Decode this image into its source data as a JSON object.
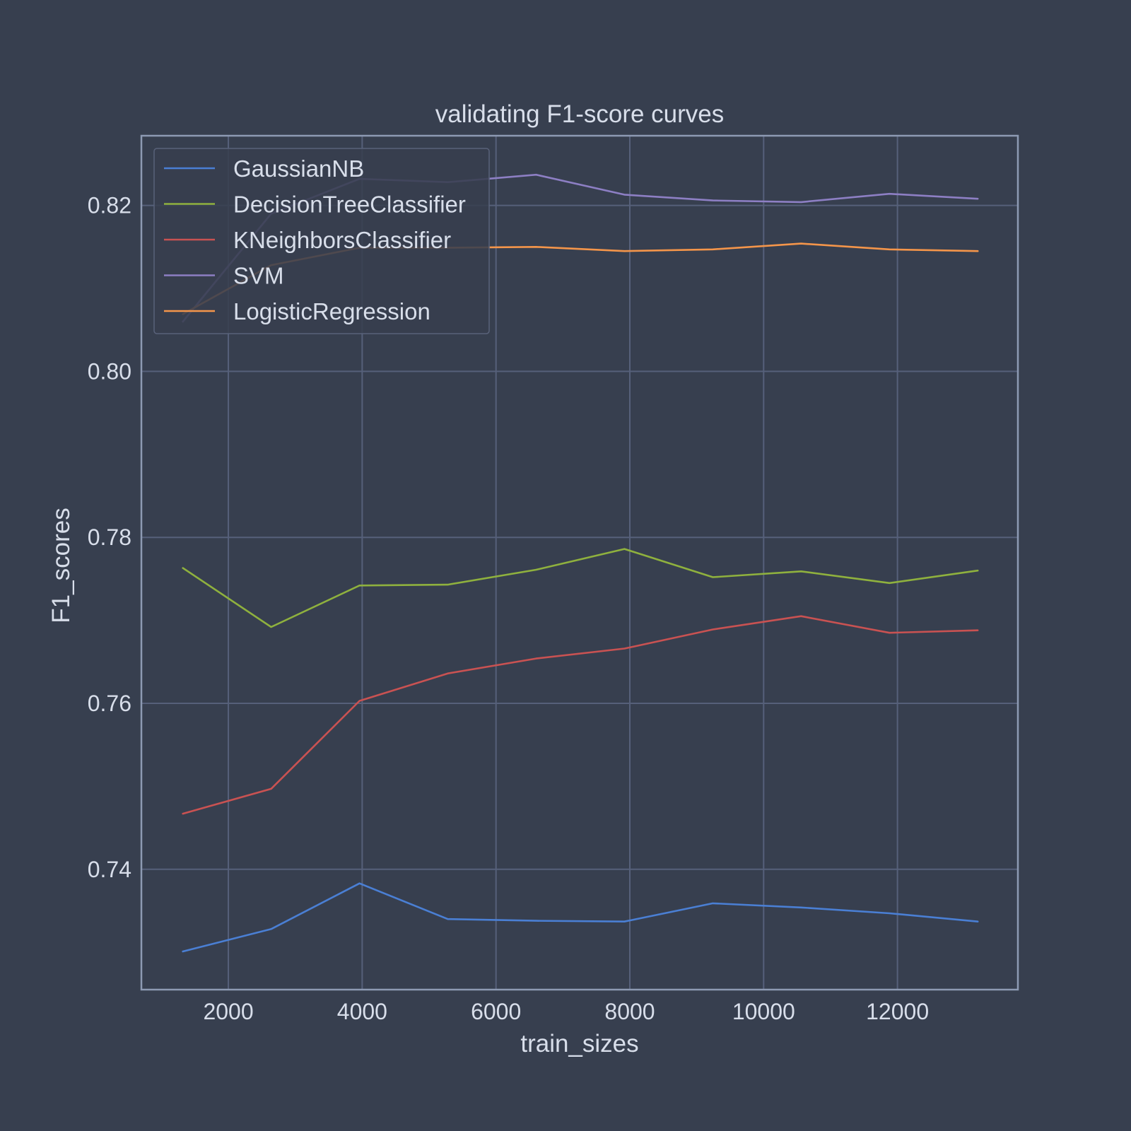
{
  "chart_data": {
    "type": "line",
    "title": "validating F1-score curves",
    "xlabel": "train_sizes",
    "ylabel": "F1_scores",
    "xlim": [
      700,
      13800
    ],
    "ylim": [
      0.7255,
      0.8284
    ],
    "xticks": [
      2000,
      4000,
      6000,
      8000,
      10000,
      12000
    ],
    "yticks": [
      0.74,
      0.76,
      0.78,
      0.8,
      0.82
    ],
    "ytick_labels": [
      "0.74",
      "0.76",
      "0.78",
      "0.80",
      "0.82"
    ],
    "grid": true,
    "legend_position": "upper-left",
    "x": [
      1320,
      2640,
      3960,
      5280,
      6600,
      7920,
      9240,
      10560,
      11880,
      13200
    ],
    "series": [
      {
        "name": "GaussianNB",
        "color": "#4a7fd4",
        "values": [
          0.7301,
          0.7328,
          0.7383,
          0.734,
          0.7338,
          0.7337,
          0.7359,
          0.7354,
          0.7347,
          0.7337
        ]
      },
      {
        "name": "DecisionTreeClassifier",
        "color": "#8fb13e",
        "values": [
          0.7763,
          0.7692,
          0.7742,
          0.7743,
          0.7761,
          0.7786,
          0.7752,
          0.7759,
          0.7745,
          0.776
        ]
      },
      {
        "name": "KNeighborsClassifier",
        "color": "#c95252",
        "values": [
          0.7467,
          0.7497,
          0.7603,
          0.7636,
          0.7654,
          0.7666,
          0.7689,
          0.7705,
          0.7685,
          0.7688
        ]
      },
      {
        "name": "SVM",
        "color": "#8d7fc4",
        "values": [
          0.806,
          0.819,
          0.8232,
          0.8228,
          0.8237,
          0.8213,
          0.8206,
          0.8204,
          0.8214,
          0.8208
        ]
      },
      {
        "name": "LogisticRegression",
        "color": "#f4954a",
        "values": [
          0.8069,
          0.8128,
          0.8149,
          0.8149,
          0.815,
          0.8145,
          0.8147,
          0.8154,
          0.8147,
          0.8145
        ]
      }
    ]
  }
}
